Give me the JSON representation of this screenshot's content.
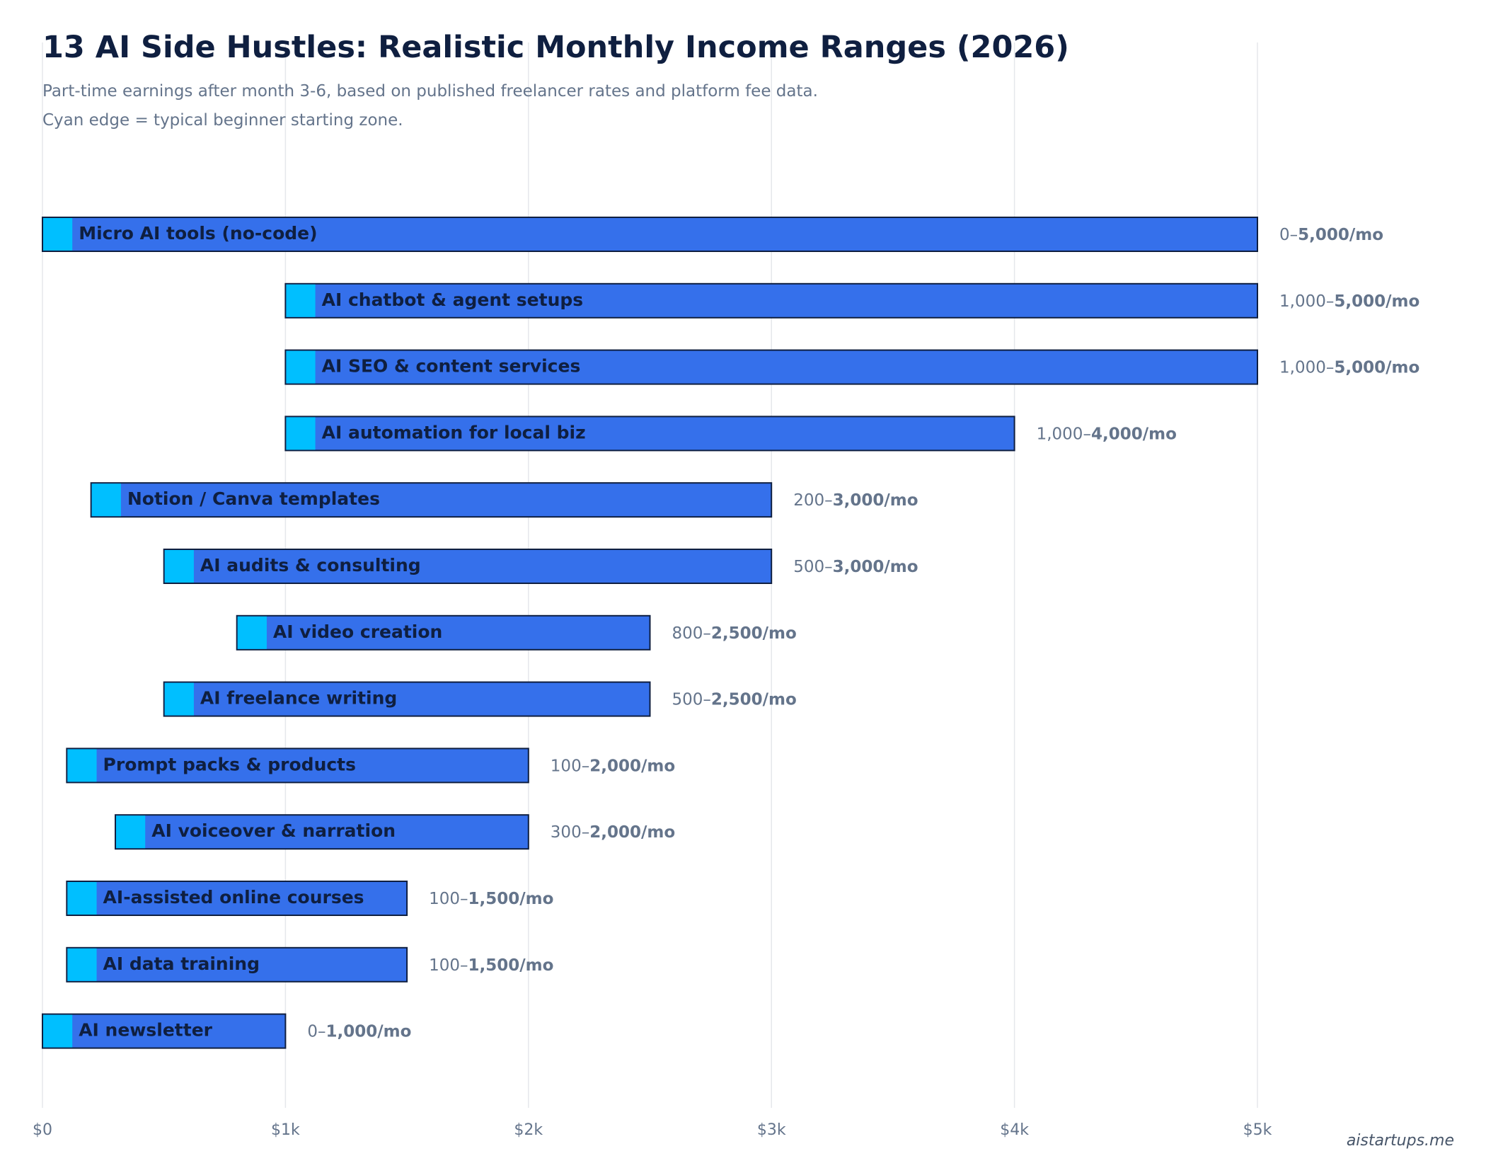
{
  "header": {
    "title": "13 AI Side Hustles: Realistic Monthly Income Ranges (2026)",
    "subtitle_line1": "Part-time earnings after month 3-6, based on published freelancer rates and platform fee data.",
    "subtitle_line2": "Cyan edge = typical beginner starting zone."
  },
  "footer": {
    "credit": "aistartups.me"
  },
  "colors": {
    "bar": "#3570eb",
    "bar_edge": "#0f1f40",
    "beginner_zone": "#00bfff",
    "grid": "#e5e7eb",
    "label": "#0f1f40",
    "muted": "#64748b"
  },
  "chart_data": {
    "type": "bar",
    "orientation": "horizontal",
    "title": "13 AI Side Hustles: Realistic Monthly Income Ranges (2026)",
    "xlabel": "",
    "ylabel": "",
    "xlim": [
      0,
      5000
    ],
    "grid": true,
    "x_ticks": [
      0,
      1000,
      2000,
      3000,
      4000,
      5000
    ],
    "x_tick_labels": [
      "$0",
      "$1k",
      "$2k",
      "$3k",
      "$4k",
      "$5k"
    ],
    "beginner_zone_width": 120,
    "series": [
      {
        "name": "Micro AI tools (no-code)",
        "low": 0,
        "high": 5000,
        "range_prefix": "0–",
        "range_high": "5,000/mo"
      },
      {
        "name": "AI chatbot & agent setups",
        "low": 1000,
        "high": 5000,
        "range_prefix": "1,000–",
        "range_high": "5,000/mo"
      },
      {
        "name": "AI SEO & content services",
        "low": 1000,
        "high": 5000,
        "range_prefix": "1,000–",
        "range_high": "5,000/mo"
      },
      {
        "name": "AI automation for local biz",
        "low": 1000,
        "high": 4000,
        "range_prefix": "1,000–",
        "range_high": "4,000/mo"
      },
      {
        "name": "Notion / Canva templates",
        "low": 200,
        "high": 3000,
        "range_prefix": "200–",
        "range_high": "3,000/mo"
      },
      {
        "name": "AI audits & consulting",
        "low": 500,
        "high": 3000,
        "range_prefix": "500–",
        "range_high": "3,000/mo"
      },
      {
        "name": "AI video creation",
        "low": 800,
        "high": 2500,
        "range_prefix": "800–",
        "range_high": "2,500/mo"
      },
      {
        "name": "AI freelance writing",
        "low": 500,
        "high": 2500,
        "range_prefix": "500–",
        "range_high": "2,500/mo"
      },
      {
        "name": "Prompt packs & products",
        "low": 100,
        "high": 2000,
        "range_prefix": "100–",
        "range_high": "2,000/mo"
      },
      {
        "name": "AI voiceover & narration",
        "low": 300,
        "high": 2000,
        "range_prefix": "300–",
        "range_high": "2,000/mo"
      },
      {
        "name": "AI-assisted online courses",
        "low": 100,
        "high": 1500,
        "range_prefix": "100–",
        "range_high": "1,500/mo"
      },
      {
        "name": "AI data training",
        "low": 100,
        "high": 1500,
        "range_prefix": "100–",
        "range_high": "1,500/mo"
      },
      {
        "name": "AI newsletter",
        "low": 0,
        "high": 1000,
        "range_prefix": "0–",
        "range_high": "1,000/mo"
      }
    ]
  }
}
